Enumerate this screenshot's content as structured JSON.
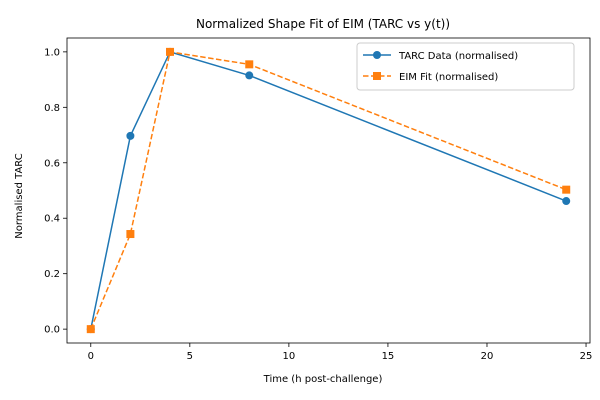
{
  "chart_data": {
    "type": "line",
    "title": "Normalized Shape Fit of EIM (TARC vs y(t))",
    "xlabel": "Time (h post-challenge)",
    "ylabel": "Normalised TARC",
    "xlim": [
      -1.2,
      25.2
    ],
    "ylim": [
      -0.05,
      1.05
    ],
    "xticks": [
      0,
      5,
      10,
      15,
      20,
      25
    ],
    "yticks": [
      0.0,
      0.2,
      0.4,
      0.6,
      0.8,
      1.0
    ],
    "xtick_labels": [
      "0",
      "5",
      "10",
      "15",
      "20",
      "25"
    ],
    "ytick_labels": [
      "0.0",
      "0.2",
      "0.4",
      "0.6",
      "0.8",
      "1.0"
    ],
    "grid": false,
    "legend_position": "top-right",
    "series": [
      {
        "name": "TARC Data (normalised)",
        "color": "#1f77b4",
        "line_style": "solid",
        "marker": "circle",
        "x": [
          0,
          2,
          4,
          8,
          24
        ],
        "y": [
          0.0,
          0.697,
          1.0,
          0.915,
          0.462
        ]
      },
      {
        "name": "EIM Fit (normalised)",
        "color": "#ff7f0e",
        "line_style": "dashed",
        "marker": "square",
        "x": [
          0,
          2,
          4,
          8,
          24
        ],
        "y": [
          0.0,
          0.343,
          1.0,
          0.955,
          0.503
        ]
      }
    ]
  }
}
